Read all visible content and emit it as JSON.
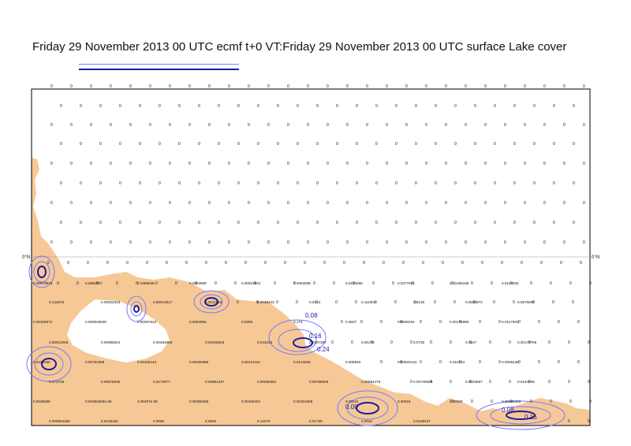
{
  "title": "Friday 29 November 2013 00 UTC ecmf t+0 VT:Friday 29 November 2013 00 UTC surface  Lake cover",
  "axis_labels": {
    "left": "0°N",
    "right": "0°N"
  },
  "colors": {
    "land": "#f6c896",
    "sea": "#ffffff",
    "frame": "#000000",
    "contour_light": "#7878ff",
    "contour_dark": "#1c1ca0"
  },
  "grid_value_default": "0",
  "contour_labels": [
    "0.08",
    "0.16",
    "0.24",
    "0.08",
    "0.16",
    "0.08"
  ],
  "grid_labels_sample": [
    "0.00970976",
    "0.0881507",
    "0.0388045",
    "0.0462899",
    "0.00921822",
    "0.0063098",
    "0.0163285",
    "0.0377961",
    "0.00188198",
    "0.0118035",
    "0.144970",
    "0.00024318",
    "0.00014817",
    "0.0011633",
    "0.0046443",
    "0.0213",
    "0.111803",
    "0.0135",
    "0.0558972",
    "0.0578008",
    "0.00105572",
    "0.000529608",
    "0.00067623",
    "0.0054956",
    "0.0269",
    "0.176",
    "0.0507",
    "0.0560204",
    "0.00176685",
    "0.0117929",
    "0.00012058",
    "0.00095542",
    "0.00484958",
    "0.00345815",
    "0.044223",
    "0.0187357",
    "0.00179",
    "0.0725",
    "0.0157",
    "0.00179766",
    "0.0155486",
    "0.00761688",
    "0.00105143",
    "0.00490886",
    "0.00131119",
    "0.0143455",
    "0.008846",
    "0.00520134",
    "0.015104",
    "0.0506248",
    "0.073728",
    "0.00578935",
    "0.0172577",
    "0.00891447",
    "0.00055361",
    "0.00786939",
    "0.00894478",
    "0.00749925",
    "0.0253867",
    "0.0164045",
    "0.0038288",
    "0.00393255e-05",
    "3.00407e-05",
    "0.00358366",
    "0.00400401",
    "0.00321059",
    "0.00241",
    "0.00524",
    "0.00009",
    "0.00023426",
    "0.000054492",
    "0.0128184",
    "0.0056",
    "0.0804",
    "0.12270",
    "0.01730",
    "0.0042",
    "0.0106237"
  ]
}
